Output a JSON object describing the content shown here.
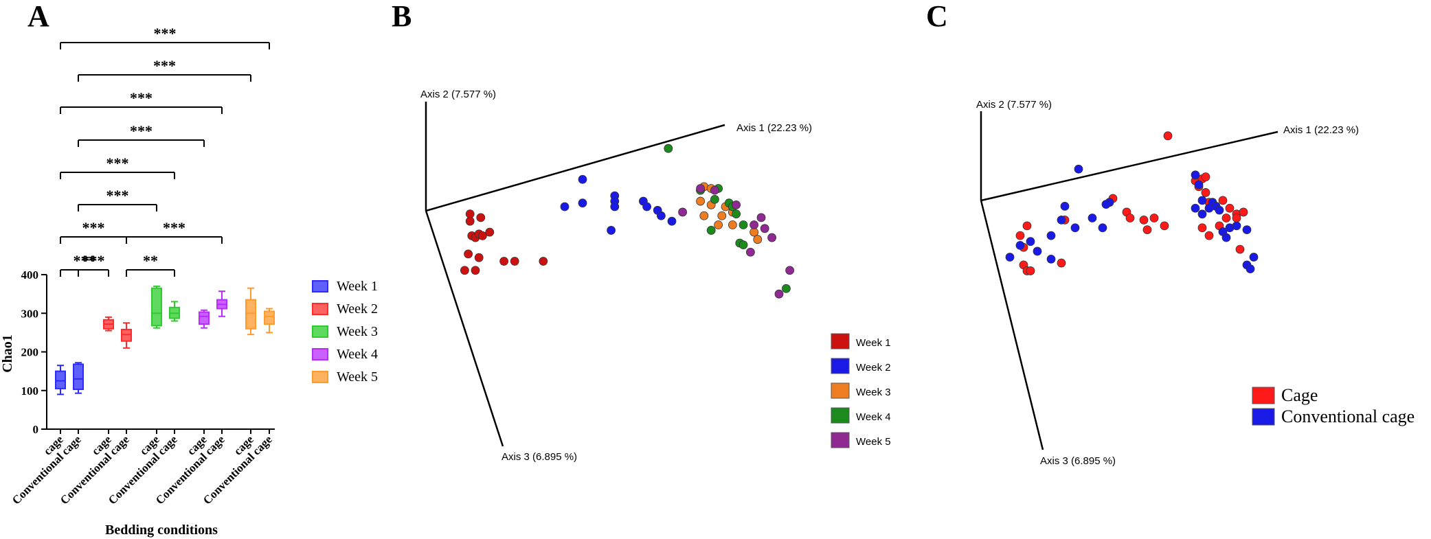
{
  "chart_data": [
    {
      "panel": "A",
      "type": "box",
      "title": "",
      "xlabel": "Bedding conditions",
      "ylabel": "Chao1",
      "ylim": [
        0,
        400
      ],
      "yticks": [
        0,
        100,
        200,
        300,
        400
      ],
      "categories": [
        "cage",
        "Conventional cage",
        "cage",
        "Conventional cage",
        "cage",
        "Conventional cage",
        "cage",
        "Conventional cage",
        "cage",
        "Conventional cage"
      ],
      "series": [
        {
          "name": "Week 1",
          "color": "#2b2bff",
          "boxes": [
            {
              "label": "cage",
              "min": 90,
              "q1": 105,
              "median": 125,
              "q3": 150,
              "max": 165
            },
            {
              "label": "Conventional cage",
              "min": 93,
              "q1": 103,
              "median": 130,
              "q3": 168,
              "max": 172
            }
          ]
        },
        {
          "name": "Week 2",
          "color": "#ff2b2b",
          "boxes": [
            {
              "label": "cage",
              "min": 255,
              "q1": 260,
              "median": 272,
              "q3": 283,
              "max": 290
            },
            {
              "label": "Conventional cage",
              "min": 210,
              "q1": 228,
              "median": 245,
              "q3": 258,
              "max": 275
            }
          ]
        },
        {
          "name": "Week 3",
          "color": "#2bcc2b",
          "boxes": [
            {
              "label": "cage",
              "min": 262,
              "q1": 268,
              "median": 300,
              "q3": 365,
              "max": 370
            },
            {
              "label": "Conventional cage",
              "min": 280,
              "q1": 287,
              "median": 300,
              "q3": 315,
              "max": 330
            }
          ]
        },
        {
          "name": "Week 4",
          "color": "#b82bff",
          "boxes": [
            {
              "label": "cage",
              "min": 262,
              "q1": 272,
              "median": 292,
              "q3": 303,
              "max": 308
            },
            {
              "label": "Conventional cage",
              "min": 292,
              "q1": 312,
              "median": 323,
              "q3": 335,
              "max": 357
            }
          ]
        },
        {
          "name": "Week 5",
          "color": "#ff9a2b",
          "boxes": [
            {
              "label": "cage",
              "min": 245,
              "q1": 260,
              "median": 300,
              "q3": 335,
              "max": 365
            },
            {
              "label": "Conventional cage",
              "min": 250,
              "q1": 272,
              "median": 292,
              "q3": 305,
              "max": 312
            }
          ]
        }
      ],
      "significance": [
        {
          "from": 0,
          "to": 9,
          "label": "***"
        },
        {
          "from": 1,
          "to": 8,
          "label": "***"
        },
        {
          "from": 0,
          "to": 7,
          "label": "***"
        },
        {
          "from": 1,
          "to": 6,
          "label": "***"
        },
        {
          "from": 0,
          "to": 5,
          "label": "***"
        },
        {
          "from": 1,
          "to": 4,
          "label": "***"
        },
        {
          "from": 0,
          "to": 3,
          "label": "***"
        },
        {
          "from": 1,
          "to": 2,
          "label": "***"
        },
        {
          "from": 3,
          "to": 7,
          "label": "***"
        },
        {
          "from": 0,
          "to": 2,
          "label": "***"
        },
        {
          "from": 3,
          "to": 5,
          "label": "**"
        }
      ],
      "legend": [
        "Week 1",
        "Week 2",
        "Week 3",
        "Week 4",
        "Week 5"
      ]
    },
    {
      "panel": "B",
      "type": "scatter",
      "title": "",
      "axes_labels": [
        "Axis 1 (22.23 %)",
        "Axis 2 (7.577 %)",
        "Axis 3 (6.895 %)"
      ],
      "legend": [
        {
          "name": "Week 1",
          "color": "#cc1111"
        },
        {
          "name": "Week 2",
          "color": "#1a1ae6"
        },
        {
          "name": "Week 3",
          "color": "#ee7d22"
        },
        {
          "name": "Week 4",
          "color": "#1d8a1d"
        },
        {
          "name": "Week 5",
          "color": "#8e2a92"
        }
      ],
      "note": "PCoA projection coordinates (unitless, read from the plane of the figure)",
      "series": [
        {
          "name": "Week 1",
          "points": [
            [
              0.09,
              0.36
            ],
            [
              0.1,
              0.37
            ],
            [
              0.11,
              0.35
            ],
            [
              0.12,
              0.36
            ],
            [
              0.14,
              0.34
            ],
            [
              0.085,
              0.28
            ],
            [
              0.115,
              0.26
            ],
            [
              0.08,
              0.46
            ],
            [
              0.11,
              0.48
            ],
            [
              0.07,
              0.55
            ],
            [
              0.1,
              0.55
            ],
            [
              0.18,
              0.5
            ],
            [
              0.21,
              0.5
            ],
            [
              0.29,
              0.5
            ],
            [
              0.085,
              0.24
            ]
          ]
        },
        {
          "name": "Week 2",
          "points": [
            [
              0.4,
              0.05
            ],
            [
              0.35,
              0.2
            ],
            [
              0.4,
              0.18
            ],
            [
              0.49,
              0.14
            ],
            [
              0.49,
              0.17
            ],
            [
              0.49,
              0.2
            ],
            [
              0.57,
              0.17
            ],
            [
              0.58,
              0.2
            ],
            [
              0.61,
              0.22
            ],
            [
              0.62,
              0.25
            ],
            [
              0.65,
              0.28
            ],
            [
              0.48,
              0.33
            ]
          ]
        },
        {
          "name": "Week 3",
          "points": [
            [
              0.73,
              0.11
            ],
            [
              0.74,
              0.09
            ],
            [
              0.76,
              0.1
            ],
            [
              0.73,
              0.17
            ],
            [
              0.76,
              0.19
            ],
            [
              0.8,
              0.2
            ],
            [
              0.82,
              0.23
            ],
            [
              0.74,
              0.25
            ],
            [
              0.79,
              0.25
            ],
            [
              0.82,
              0.3
            ],
            [
              0.88,
              0.34
            ],
            [
              0.89,
              0.38
            ],
            [
              0.78,
              0.3
            ]
          ]
        },
        {
          "name": "Week 4",
          "points": [
            [
              0.64,
              -0.12
            ],
            [
              0.73,
              0.11
            ],
            [
              0.78,
              0.1
            ],
            [
              0.77,
              0.16
            ],
            [
              0.81,
              0.18
            ],
            [
              0.82,
              0.2
            ],
            [
              0.83,
              0.24
            ],
            [
              0.85,
              0.3
            ],
            [
              0.84,
              0.4
            ],
            [
              0.85,
              0.41
            ],
            [
              0.76,
              0.33
            ],
            [
              0.97,
              0.65
            ]
          ]
        },
        {
          "name": "Week 5",
          "points": [
            [
              0.73,
              0.1
            ],
            [
              0.77,
              0.11
            ],
            [
              0.83,
              0.19
            ],
            [
              0.68,
              0.23
            ],
            [
              0.9,
              0.26
            ],
            [
              0.88,
              0.3
            ],
            [
              0.91,
              0.32
            ],
            [
              0.93,
              0.37
            ],
            [
              0.87,
              0.45
            ],
            [
              0.98,
              0.55
            ],
            [
              0.95,
              0.68
            ]
          ]
        }
      ]
    },
    {
      "panel": "C",
      "type": "scatter",
      "title": "",
      "axes_labels": [
        "Axis 1 (22.23 %)",
        "Axis 2 (7.577 %)",
        "Axis 3 (6.895 %)"
      ],
      "legend": [
        {
          "name": "Cage",
          "color": "#ff1a1a"
        },
        {
          "name": "Conventional cage",
          "color": "#1a1ae6"
        }
      ],
      "note": "PCoA projection coordinates (unitless, read from the plane of the figure)",
      "series": [
        {
          "name": "Cage",
          "points": [
            [
              0.52,
              -0.12
            ],
            [
              0.6,
              0.11
            ],
            [
              0.62,
              0.1
            ],
            [
              0.63,
              0.09
            ],
            [
              0.61,
              0.14
            ],
            [
              0.63,
              0.17
            ],
            [
              0.64,
              0.22
            ],
            [
              0.66,
              0.24
            ],
            [
              0.68,
              0.21
            ],
            [
              0.7,
              0.25
            ],
            [
              0.69,
              0.3
            ],
            [
              0.72,
              0.28
            ],
            [
              0.72,
              0.3
            ],
            [
              0.74,
              0.27
            ],
            [
              0.62,
              0.35
            ],
            [
              0.67,
              0.34
            ],
            [
              0.64,
              0.39
            ],
            [
              0.73,
              0.46
            ],
            [
              0.4,
              0.27
            ],
            [
              0.41,
              0.3
            ],
            [
              0.45,
              0.31
            ],
            [
              0.46,
              0.36
            ],
            [
              0.51,
              0.34
            ],
            [
              0.48,
              0.3
            ],
            [
              0.36,
              0.2
            ],
            [
              0.22,
              0.31
            ],
            [
              0.11,
              0.34
            ],
            [
              0.09,
              0.39
            ],
            [
              0.1,
              0.45
            ],
            [
              0.1,
              0.54
            ],
            [
              0.11,
              0.57
            ],
            [
              0.12,
              0.57
            ],
            [
              0.21,
              0.53
            ]
          ]
        },
        {
          "name": "Conventional cage",
          "points": [
            [
              0.26,
              0.05
            ],
            [
              0.6,
              0.08
            ],
            [
              0.61,
              0.13
            ],
            [
              0.62,
              0.21
            ],
            [
              0.65,
              0.22
            ],
            [
              0.66,
              0.24
            ],
            [
              0.67,
              0.26
            ],
            [
              0.64,
              0.25
            ],
            [
              0.62,
              0.28
            ],
            [
              0.6,
              0.25
            ],
            [
              0.7,
              0.35
            ],
            [
              0.72,
              0.34
            ],
            [
              0.68,
              0.37
            ],
            [
              0.69,
              0.4
            ],
            [
              0.75,
              0.36
            ],
            [
              0.77,
              0.5
            ],
            [
              0.75,
              0.54
            ],
            [
              0.76,
              0.56
            ],
            [
              0.35,
              0.22
            ],
            [
              0.34,
              0.23
            ],
            [
              0.22,
              0.24
            ],
            [
              0.21,
              0.31
            ],
            [
              0.3,
              0.3
            ],
            [
              0.25,
              0.35
            ],
            [
              0.33,
              0.35
            ],
            [
              0.18,
              0.39
            ],
            [
              0.12,
              0.42
            ],
            [
              0.09,
              0.44
            ],
            [
              0.06,
              0.5
            ],
            [
              0.14,
              0.47
            ],
            [
              0.18,
              0.51
            ]
          ]
        }
      ]
    }
  ],
  "panels": {
    "a": {
      "letter": "A"
    },
    "b": {
      "letter": "B"
    },
    "c": {
      "letter": "C"
    }
  }
}
